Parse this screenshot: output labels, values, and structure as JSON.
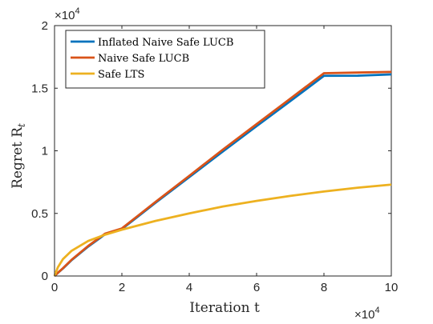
{
  "chart_data": {
    "type": "line",
    "title": "",
    "xlabel": "Iteration t",
    "ylabel": "Regret R",
    "ylabel_subscript": "t",
    "x_multiplier": "×10",
    "x_multiplier_exp": "4",
    "y_multiplier": "×10",
    "y_multiplier_exp": "4",
    "xlim": [
      0,
      100000
    ],
    "ylim": [
      0,
      20000
    ],
    "xticks": [
      0,
      20000,
      40000,
      60000,
      80000,
      100000
    ],
    "xtick_labels": [
      "0",
      "2",
      "4",
      "6",
      "8",
      "10"
    ],
    "yticks": [
      0,
      5000,
      10000,
      15000,
      20000
    ],
    "ytick_labels": [
      "0",
      "0.5",
      "1",
      "1.5",
      "2"
    ],
    "grid": false,
    "legend_position": "top-left",
    "x": [
      0,
      1000,
      2500,
      5000,
      10000,
      15000,
      20000,
      25000,
      30000,
      40000,
      50000,
      60000,
      70000,
      80000,
      90000,
      100000
    ],
    "series": [
      {
        "name": "Inflated Naive Safe LUCB",
        "color": "#0072BD",
        "values": [
          0,
          250,
          600,
          1250,
          2350,
          3330,
          3750,
          4800,
          5850,
          7900,
          9950,
          11970,
          13970,
          15990,
          16000,
          16100
        ]
      },
      {
        "name": "Naive Safe LUCB",
        "color": "#D95319",
        "values": [
          0,
          260,
          620,
          1280,
          2400,
          3380,
          3800,
          4860,
          5920,
          8000,
          10100,
          12130,
          14160,
          16200,
          16250,
          16300
        ]
      },
      {
        "name": "Safe LTS",
        "color": "#EDB120",
        "values": [
          0,
          700,
          1350,
          2000,
          2800,
          3300,
          3700,
          4050,
          4400,
          5000,
          5550,
          6000,
          6400,
          6750,
          7050,
          7300
        ]
      }
    ]
  }
}
